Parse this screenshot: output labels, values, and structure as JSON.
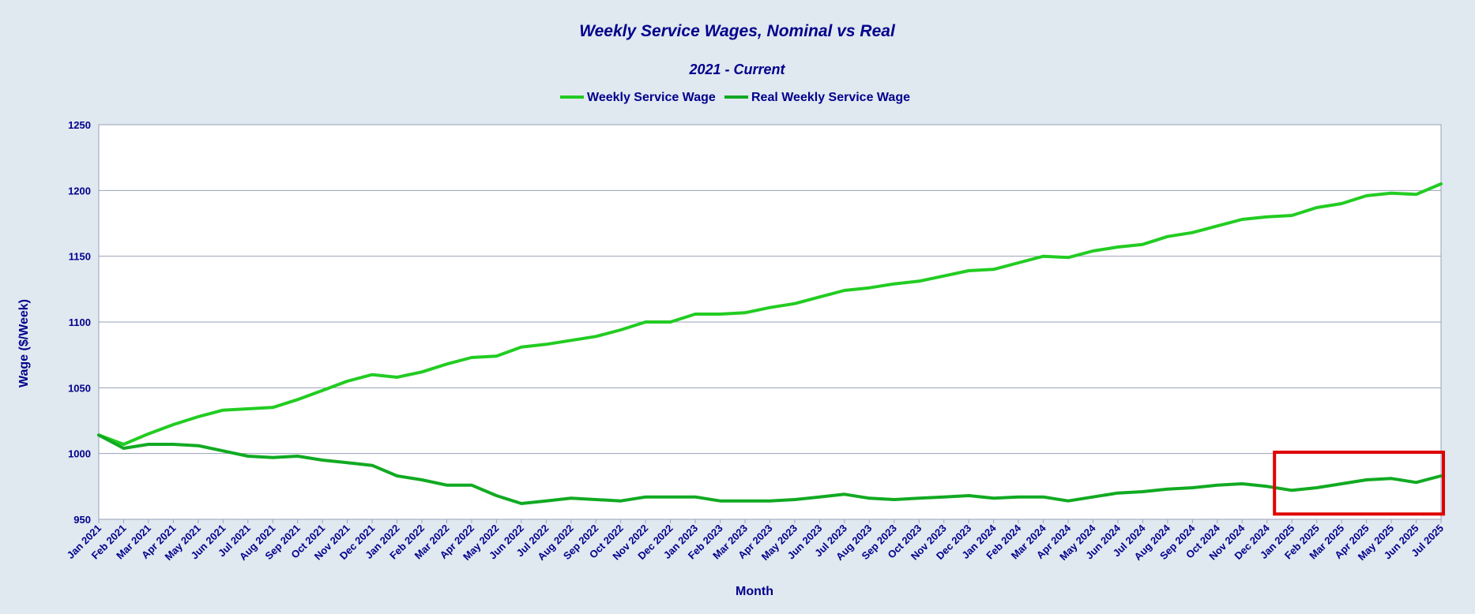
{
  "chart_data": {
    "type": "line",
    "title": "Weekly Service Wages, Nominal vs Real",
    "subtitle": "2021 - Current",
    "xlabel": "Month",
    "ylabel": "Wage ($/Week)",
    "ylim": [
      950,
      1250
    ],
    "yticks": [
      950,
      1000,
      1050,
      1100,
      1150,
      1200,
      1250
    ],
    "grid": true,
    "legend_position": "top-center",
    "categories": [
      "Jan 2021",
      "Feb 2021",
      "Mar 2021",
      "Apr 2021",
      "May 2021",
      "Jun 2021",
      "Jul 2021",
      "Aug 2021",
      "Sep 2021",
      "Oct 2021",
      "Nov 2021",
      "Dec 2021",
      "Jan 2022",
      "Feb 2022",
      "Mar 2022",
      "Apr 2022",
      "May 2022",
      "Jun 2022",
      "Jul 2022",
      "Aug 2022",
      "Sep 2022",
      "Oct 2022",
      "Nov 2022",
      "Dec 2022",
      "Jan 2023",
      "Feb 2023",
      "Mar 2023",
      "Apr 2023",
      "May 2023",
      "Jun 2023",
      "Jul 2023",
      "Aug 2023",
      "Sep 2023",
      "Oct 2023",
      "Nov 2023",
      "Dec 2023",
      "Jan 2024",
      "Feb 2024",
      "Mar 2024",
      "Apr 2024",
      "May 2024",
      "Jun 2024",
      "Jul 2024",
      "Aug 2024",
      "Sep 2024",
      "Oct 2024",
      "Nov 2024",
      "Dec 2024",
      "Jan 2025",
      "Feb 2025",
      "Mar 2025",
      "Apr 2025",
      "May 2025",
      "Jun 2025",
      "Jul 2025"
    ],
    "series": [
      {
        "name": "Weekly Service Wage",
        "color": "#22cc22",
        "values": [
          1014,
          1007,
          1015,
          1022,
          1028,
          1033,
          1034,
          1035,
          1041,
          1048,
          1055,
          1060,
          1058,
          1062,
          1068,
          1073,
          1074,
          1081,
          1083,
          1086,
          1089,
          1094,
          1100,
          1100,
          1106,
          1106,
          1107,
          1111,
          1114,
          1119,
          1124,
          1126,
          1129,
          1131,
          1135,
          1139,
          1140,
          1145,
          1150,
          1149,
          1154,
          1157,
          1159,
          1165,
          1168,
          1173,
          1178,
          1180,
          1181,
          1187,
          1190,
          1196,
          1198,
          1197,
          1205
        ]
      },
      {
        "name": "Real Weekly Service  Wage",
        "color": "#11aa22",
        "values": [
          1014,
          1004,
          1007,
          1007,
          1006,
          1002,
          998,
          997,
          998,
          995,
          993,
          991,
          983,
          980,
          976,
          976,
          968,
          962,
          964,
          966,
          965,
          964,
          967,
          967,
          967,
          964,
          964,
          964,
          965,
          967,
          969,
          966,
          965,
          966,
          967,
          968,
          966,
          967,
          967,
          964,
          967,
          970,
          971,
          973,
          974,
          976,
          977,
          975,
          972,
          974,
          977,
          980,
          981,
          978,
          983
        ]
      }
    ],
    "annotation": {
      "type": "highlight-box",
      "color": "#e00000",
      "x_range": [
        "Dec 2024",
        "Jul 2025"
      ],
      "y_range": [
        954,
        1001
      ]
    }
  }
}
